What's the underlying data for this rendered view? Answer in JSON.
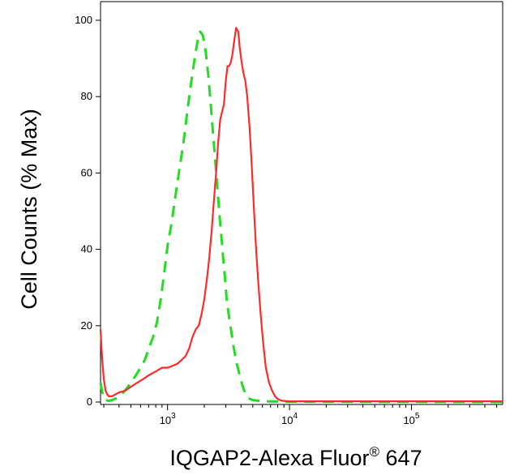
{
  "chart_data": {
    "type": "line",
    "title": "",
    "xlabel": {
      "main": "IQGAP2-Alexa Fluor",
      "sup": "®",
      "tail": " 647"
    },
    "ylabel": "Cell Counts (% Max)",
    "x_scale": "log",
    "xlim": [
      282,
      560000
    ],
    "ylim": [
      0,
      100
    ],
    "y_ticks": [
      0,
      20,
      40,
      60,
      80,
      100
    ],
    "y_tick_labels": [
      "0",
      "20",
      "40",
      "60",
      "80",
      "100"
    ],
    "x_ticks": [
      1000,
      10000,
      100000
    ],
    "x_tick_labels": [
      {
        "base": "10",
        "exp": "3"
      },
      {
        "base": "10",
        "exp": "4"
      },
      {
        "base": "10",
        "exp": "5"
      }
    ],
    "grid": false,
    "series": [
      {
        "color": "#ff2a2a",
        "dash": "solid",
        "x": [
          282,
          290,
          300,
          310,
          320,
          330,
          350,
          400,
          450,
          500,
          560,
          630,
          700,
          800,
          900,
          1000,
          1100,
          1200,
          1300,
          1400,
          1500,
          1600,
          1700,
          1800,
          1900,
          2000,
          2100,
          2200,
          2300,
          2400,
          2500,
          2600,
          2700,
          2800,
          2900,
          3000,
          3100,
          3200,
          3300,
          3400,
          3500,
          3650,
          3800,
          3900,
          4050,
          4200,
          4350,
          4500,
          4700,
          4900,
          5100,
          5300,
          5500,
          5800,
          6100,
          6400,
          6800,
          7200,
          7600,
          8000,
          8500,
          9000,
          10000,
          12000,
          20000,
          50000,
          100000,
          200000,
          560000
        ],
        "y": [
          19,
          12,
          6,
          3,
          2,
          1.5,
          1.5,
          2.5,
          3,
          4,
          5,
          6,
          7,
          8,
          9,
          9,
          9.5,
          10,
          11,
          12,
          14,
          17,
          19,
          20,
          23,
          27,
          32,
          38,
          45,
          53,
          60,
          68,
          74,
          76,
          78,
          84,
          88,
          88,
          89,
          91,
          94,
          98,
          97,
          93,
          89,
          86,
          84,
          80,
          72,
          62,
          51,
          41,
          33,
          23,
          15,
          9,
          5,
          3,
          1.5,
          0.8,
          0.4,
          0.3,
          0.2,
          0.2,
          0.2,
          0.2,
          0.2,
          0.2,
          0.2
        ]
      },
      {
        "color": "#22dd22",
        "dash": "dashed",
        "x": [
          282,
          290,
          300,
          310,
          330,
          350,
          380,
          420,
          460,
          500,
          550,
          600,
          650,
          700,
          760,
          820,
          880,
          940,
          1000,
          1080,
          1160,
          1250,
          1350,
          1450,
          1550,
          1650,
          1750,
          1800,
          1850,
          1950,
          2050,
          2150,
          2250,
          2350,
          2450,
          2550,
          2650,
          2750,
          2850,
          2950,
          3050,
          3200,
          3350,
          3500,
          3700,
          3900,
          4100,
          4300,
          4600,
          5000,
          6000,
          10000,
          560000
        ],
        "y": [
          5,
          3,
          1,
          0.5,
          0.3,
          0.5,
          1,
          2,
          3.5,
          5,
          7,
          9,
          11,
          14,
          17,
          21,
          27,
          34,
          41,
          47,
          54,
          61,
          68,
          76,
          83,
          89,
          94,
          96,
          97,
          96,
          92,
          86,
          79,
          71,
          64,
          57,
          50,
          44,
          38,
          33,
          27,
          22,
          18,
          14,
          10,
          7,
          4.5,
          2.5,
          1,
          0.5,
          0.2,
          0.1,
          0
        ]
      }
    ]
  }
}
